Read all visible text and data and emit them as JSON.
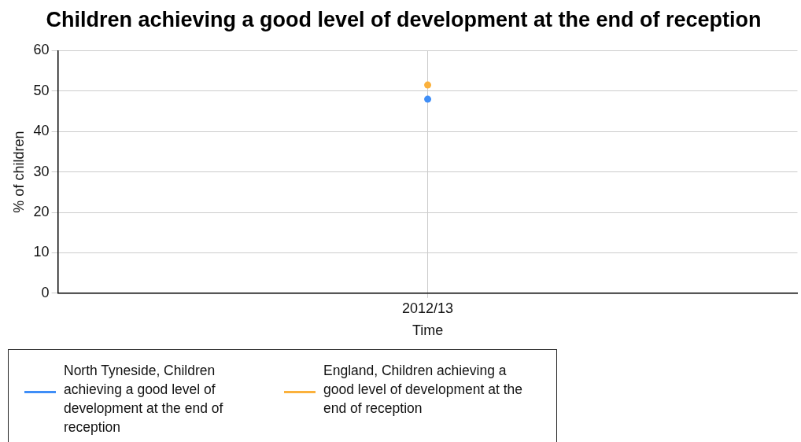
{
  "chart_data": {
    "type": "line",
    "title": "Children achieving a good level of development at the end of reception",
    "xlabel": "Time",
    "ylabel": "% of children",
    "categories": [
      "2012/13"
    ],
    "series": [
      {
        "name": "North Tyneside, Children achieving a good level of development at the end of reception",
        "color": "#3f8ef7",
        "values": [
          48
        ]
      },
      {
        "name": "England, Children achieving a good level of development at the end of reception",
        "color": "#fbb13c",
        "values": [
          51.5
        ]
      }
    ],
    "ylim": [
      0,
      60
    ],
    "yticks": [
      0,
      10,
      20,
      30,
      40,
      50,
      60
    ],
    "grid": true,
    "legend": "bottom left",
    "marker": "circle"
  }
}
